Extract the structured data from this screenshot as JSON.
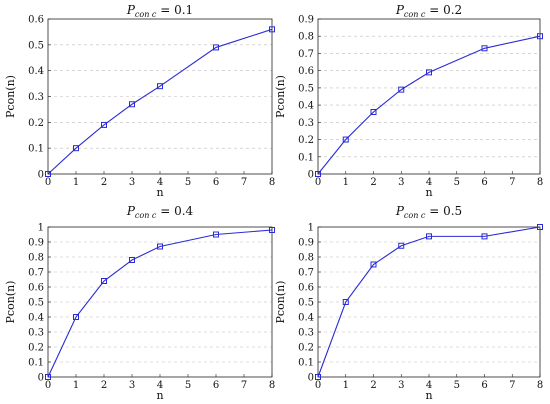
{
  "chart_data": [
    {
      "type": "line",
      "title_var": "P",
      "title_sub": "con c",
      "title_value": " = 0.1",
      "xlabel": "n",
      "ylabel": "Pcon(n)",
      "x": [
        0,
        1,
        2,
        3,
        4,
        6,
        8
      ],
      "series": [
        {
          "values": [
            0,
            0.1,
            0.19,
            0.27,
            0.34,
            0.49,
            0.56
          ]
        }
      ],
      "xlim": [
        0,
        8
      ],
      "ylim": [
        0,
        0.6
      ],
      "xticks": [
        0,
        1,
        2,
        3,
        4,
        5,
        6,
        7,
        8
      ],
      "yticks": [
        0,
        0.1,
        0.2,
        0.3,
        0.4,
        0.5,
        0.6
      ],
      "grid": "horizontal-dashed"
    },
    {
      "type": "line",
      "title_var": "P",
      "title_sub": "con c",
      "title_value": " = 0.2",
      "xlabel": "n",
      "ylabel": "Pcon(n)",
      "x": [
        0,
        1,
        2,
        3,
        4,
        6,
        8
      ],
      "series": [
        {
          "values": [
            0,
            0.2,
            0.36,
            0.49,
            0.59,
            0.73,
            0.8
          ]
        }
      ],
      "xlim": [
        0,
        8
      ],
      "ylim": [
        0,
        0.9
      ],
      "xticks": [
        0,
        1,
        2,
        3,
        4,
        5,
        6,
        7,
        8
      ],
      "yticks": [
        0,
        0.1,
        0.2,
        0.3,
        0.4,
        0.5,
        0.6,
        0.7,
        0.8,
        0.9
      ],
      "grid": "horizontal-dashed"
    },
    {
      "type": "line",
      "title_var": "P",
      "title_sub": "con c",
      "title_value": " = 0.4",
      "xlabel": "n",
      "ylabel": "Pcon(n)",
      "x": [
        0,
        1,
        2,
        3,
        4,
        6,
        8
      ],
      "series": [
        {
          "values": [
            0,
            0.4,
            0.64,
            0.78,
            0.87,
            0.95,
            0.98
          ]
        }
      ],
      "xlim": [
        0,
        8
      ],
      "ylim": [
        0,
        1
      ],
      "xticks": [
        0,
        1,
        2,
        3,
        4,
        5,
        6,
        7,
        8
      ],
      "yticks": [
        0,
        0.1,
        0.2,
        0.3,
        0.4,
        0.5,
        0.6,
        0.7,
        0.8,
        0.9,
        1
      ],
      "grid": "horizontal-dashed"
    },
    {
      "type": "line",
      "title_var": "P",
      "title_sub": "con c",
      "title_value": " = 0.5",
      "xlabel": "n",
      "ylabel": "Pcon(n)",
      "x": [
        0,
        1,
        2,
        3,
        4,
        6,
        8
      ],
      "series": [
        {
          "values": [
            0,
            0.5,
            0.75,
            0.875,
            0.9375,
            0.9375,
            1.0
          ]
        }
      ],
      "xlim": [
        0,
        8
      ],
      "ylim": [
        0,
        1
      ],
      "xticks": [
        0,
        1,
        2,
        3,
        4,
        5,
        6,
        7,
        8
      ],
      "yticks": [
        0,
        0.1,
        0.2,
        0.3,
        0.4,
        0.5,
        0.6,
        0.7,
        0.8,
        0.9,
        1
      ],
      "grid": "horizontal-dashed"
    }
  ]
}
